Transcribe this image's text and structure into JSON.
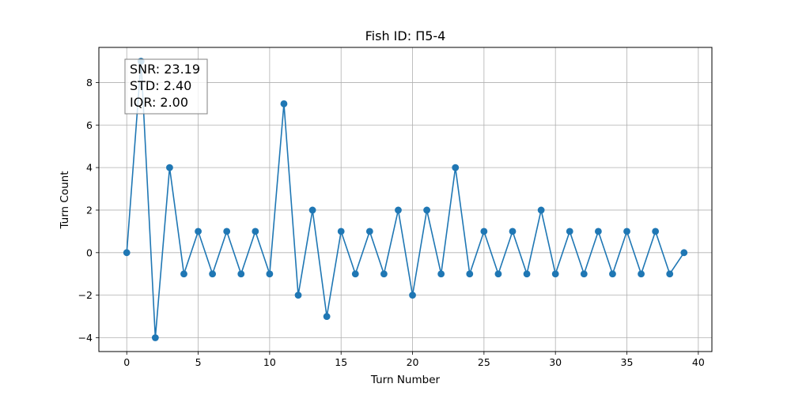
{
  "chart_data": {
    "type": "line",
    "title": "Fish ID: П5-4",
    "xlabel": "Turn Number",
    "ylabel": "Turn Count",
    "xlim": [
      -1.95,
      40.95
    ],
    "ylim": [
      -4.65,
      9.65
    ],
    "x_ticks": [
      0,
      5,
      10,
      15,
      20,
      25,
      30,
      35,
      40
    ],
    "y_ticks": [
      -4,
      -2,
      0,
      2,
      4,
      6,
      8
    ],
    "grid": true,
    "color": "#1f77b4",
    "x": [
      0,
      1,
      2,
      3,
      4,
      5,
      6,
      7,
      8,
      9,
      10,
      11,
      12,
      13,
      14,
      15,
      16,
      17,
      18,
      19,
      20,
      21,
      22,
      23,
      24,
      25,
      26,
      27,
      28,
      29,
      30,
      31,
      32,
      33,
      34,
      35,
      36,
      37,
      38,
      39
    ],
    "y": [
      0,
      9,
      -4,
      4,
      -1,
      1,
      -1,
      1,
      -1,
      1,
      -1,
      7,
      -2,
      2,
      -3,
      1,
      -1,
      1,
      -1,
      2,
      -2,
      2,
      -1,
      4,
      -1,
      1,
      -1,
      1,
      -1,
      2,
      -1,
      1,
      -1,
      1,
      -1,
      1,
      -1,
      1,
      -1,
      0
    ],
    "annotation": {
      "lines": [
        "SNR: 23.19",
        "STD: 2.40",
        "IQR: 2.00"
      ],
      "placement": "top-left"
    }
  }
}
